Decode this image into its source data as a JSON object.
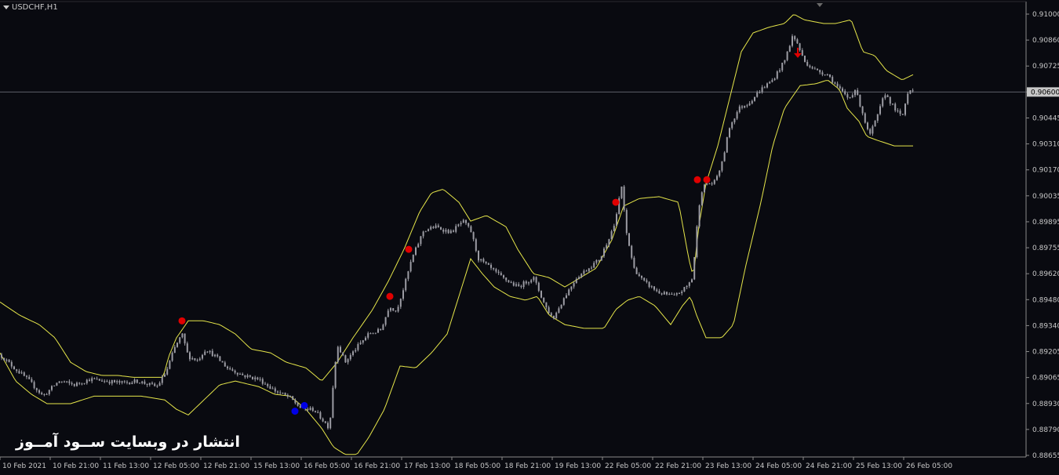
{
  "window": {
    "symbol_label": "USDCHF,H1",
    "watermark": "انتشار در وبسایت ســود آمــوز"
  },
  "colors": {
    "background": "#090a10",
    "grid_axis": "#8a8a8a",
    "candle": "#9c9ca4",
    "band": "#e6e64a",
    "signal_sell": "#e00000",
    "signal_buy": "#0000e6",
    "price_line": "#5c6068",
    "price_label_bg": "#c8c8c8"
  },
  "chart_data": {
    "type": "candlestick",
    "instrument": "USDCHF",
    "timeframe": "H1",
    "price_axis_ticks": [
      "0.91000",
      "0.90860",
      "0.90725",
      "0.90600",
      "0.90445",
      "0.90310",
      "0.90170",
      "0.90035",
      "0.89895",
      "0.89755",
      "0.89620",
      "0.89480",
      "0.89340",
      "0.89205",
      "0.89065",
      "0.88930",
      "0.88790",
      "0.88655"
    ],
    "current_price": "0.90600",
    "time_axis_labels": [
      "10 Feb 2021",
      "10 Feb 21:00",
      "11 Feb 13:00",
      "12 Feb 05:00",
      "12 Feb 21:00",
      "15 Feb 13:00",
      "16 Feb 05:00",
      "16 Feb 21:00",
      "17 Feb 13:00",
      "18 Feb 05:00",
      "18 Feb 21:00",
      "19 Feb 13:00",
      "22 Feb 05:00",
      "22 Feb 21:00",
      "23 Feb 13:00",
      "24 Feb 05:00",
      "24 Feb 21:00",
      "25 Feb 13:00",
      "26 Feb 05:00"
    ],
    "price_path": [
      [
        0,
        0.8919
      ],
      [
        18,
        0.8912
      ],
      [
        35,
        0.8906
      ],
      [
        55,
        0.8897
      ],
      [
        75,
        0.8905
      ],
      [
        95,
        0.8903
      ],
      [
        115,
        0.8906
      ],
      [
        135,
        0.8905
      ],
      [
        155,
        0.8904
      ],
      [
        175,
        0.8905
      ],
      [
        200,
        0.8902
      ],
      [
        212,
        0.891
      ],
      [
        222,
        0.8922
      ],
      [
        232,
        0.893
      ],
      [
        240,
        0.8918
      ],
      [
        252,
        0.8916
      ],
      [
        262,
        0.8922
      ],
      [
        275,
        0.8918
      ],
      [
        290,
        0.8912
      ],
      [
        310,
        0.8908
      ],
      [
        330,
        0.8906
      ],
      [
        350,
        0.89
      ],
      [
        370,
        0.8896
      ],
      [
        385,
        0.889
      ],
      [
        400,
        0.889
      ],
      [
        410,
        0.8885
      ],
      [
        420,
        0.888
      ],
      [
        425,
        0.8905
      ],
      [
        430,
        0.8925
      ],
      [
        440,
        0.8915
      ],
      [
        455,
        0.8923
      ],
      [
        470,
        0.893
      ],
      [
        485,
        0.8932
      ],
      [
        497,
        0.8945
      ],
      [
        505,
        0.8942
      ],
      [
        515,
        0.8955
      ],
      [
        525,
        0.897
      ],
      [
        540,
        0.8985
      ],
      [
        555,
        0.8987
      ],
      [
        575,
        0.8984
      ],
      [
        590,
        0.899
      ],
      [
        600,
        0.8985
      ],
      [
        610,
        0.897
      ],
      [
        625,
        0.8965
      ],
      [
        640,
        0.896
      ],
      [
        660,
        0.8955
      ],
      [
        680,
        0.896
      ],
      [
        695,
        0.8945
      ],
      [
        705,
        0.8938
      ],
      [
        720,
        0.895
      ],
      [
        735,
        0.896
      ],
      [
        750,
        0.8965
      ],
      [
        765,
        0.897
      ],
      [
        775,
        0.898
      ],
      [
        785,
        0.899
      ],
      [
        792,
        0.901
      ],
      [
        798,
        0.8985
      ],
      [
        808,
        0.8965
      ],
      [
        820,
        0.8958
      ],
      [
        840,
        0.8952
      ],
      [
        860,
        0.895
      ],
      [
        875,
        0.8955
      ],
      [
        883,
        0.896
      ],
      [
        888,
        0.8985
      ],
      [
        893,
        0.9005
      ],
      [
        900,
        0.901
      ],
      [
        910,
        0.901
      ],
      [
        920,
        0.902
      ],
      [
        930,
        0.904
      ],
      [
        942,
        0.905
      ],
      [
        955,
        0.9053
      ],
      [
        970,
        0.906
      ],
      [
        985,
        0.9065
      ],
      [
        1000,
        0.9075
      ],
      [
        1010,
        0.9088
      ],
      [
        1016,
        0.9085
      ],
      [
        1025,
        0.9075
      ],
      [
        1040,
        0.907
      ],
      [
        1055,
        0.9068
      ],
      [
        1070,
        0.906
      ],
      [
        1082,
        0.9055
      ],
      [
        1090,
        0.906
      ],
      [
        1098,
        0.905
      ],
      [
        1108,
        0.9035
      ],
      [
        1118,
        0.9045
      ],
      [
        1128,
        0.9058
      ],
      [
        1140,
        0.905
      ],
      [
        1150,
        0.9045
      ],
      [
        1158,
        0.906
      ],
      [
        1165,
        0.906
      ]
    ],
    "upper_band": [
      [
        0,
        0.8947
      ],
      [
        25,
        0.894
      ],
      [
        50,
        0.8935
      ],
      [
        70,
        0.8928
      ],
      [
        90,
        0.8915
      ],
      [
        110,
        0.891
      ],
      [
        130,
        0.8908
      ],
      [
        150,
        0.8908
      ],
      [
        170,
        0.8907
      ],
      [
        190,
        0.8907
      ],
      [
        208,
        0.8907
      ],
      [
        215,
        0.8918
      ],
      [
        225,
        0.8928
      ],
      [
        240,
        0.8937
      ],
      [
        260,
        0.8937
      ],
      [
        280,
        0.8935
      ],
      [
        300,
        0.893
      ],
      [
        320,
        0.8922
      ],
      [
        345,
        0.892
      ],
      [
        365,
        0.8915
      ],
      [
        390,
        0.8912
      ],
      [
        410,
        0.8905
      ],
      [
        430,
        0.8915
      ],
      [
        450,
        0.8928
      ],
      [
        475,
        0.8943
      ],
      [
        495,
        0.8958
      ],
      [
        515,
        0.8975
      ],
      [
        535,
        0.8995
      ],
      [
        550,
        0.9005
      ],
      [
        565,
        0.9007
      ],
      [
        585,
        0.9
      ],
      [
        600,
        0.899
      ],
      [
        620,
        0.8993
      ],
      [
        645,
        0.8987
      ],
      [
        660,
        0.8975
      ],
      [
        680,
        0.8962
      ],
      [
        700,
        0.896
      ],
      [
        720,
        0.8955
      ],
      [
        740,
        0.896
      ],
      [
        760,
        0.8965
      ],
      [
        780,
        0.898
      ],
      [
        795,
        0.8998
      ],
      [
        815,
        0.9002
      ],
      [
        840,
        0.9003
      ],
      [
        865,
        0.9
      ],
      [
        878,
        0.897
      ],
      [
        884,
        0.896
      ],
      [
        890,
        0.8985
      ],
      [
        900,
        0.901
      ],
      [
        915,
        0.903
      ],
      [
        930,
        0.9055
      ],
      [
        945,
        0.908
      ],
      [
        960,
        0.909
      ],
      [
        980,
        0.9093
      ],
      [
        1000,
        0.9095
      ],
      [
        1012,
        0.91
      ],
      [
        1025,
        0.9097
      ],
      [
        1050,
        0.9095
      ],
      [
        1065,
        0.9095
      ],
      [
        1085,
        0.9097
      ],
      [
        1100,
        0.908
      ],
      [
        1115,
        0.9078
      ],
      [
        1130,
        0.907
      ],
      [
        1150,
        0.9065
      ],
      [
        1165,
        0.9068
      ]
    ],
    "lower_band": [
      [
        0,
        0.892
      ],
      [
        20,
        0.8905
      ],
      [
        40,
        0.8898
      ],
      [
        60,
        0.8893
      ],
      [
        90,
        0.8893
      ],
      [
        120,
        0.8897
      ],
      [
        150,
        0.8897
      ],
      [
        180,
        0.8897
      ],
      [
        210,
        0.8895
      ],
      [
        225,
        0.889
      ],
      [
        240,
        0.8887
      ],
      [
        260,
        0.8895
      ],
      [
        280,
        0.8903
      ],
      [
        300,
        0.8905
      ],
      [
        330,
        0.8902
      ],
      [
        350,
        0.8898
      ],
      [
        370,
        0.8897
      ],
      [
        390,
        0.889
      ],
      [
        410,
        0.888
      ],
      [
        425,
        0.887
      ],
      [
        440,
        0.8866
      ],
      [
        455,
        0.8866
      ],
      [
        470,
        0.8875
      ],
      [
        490,
        0.889
      ],
      [
        510,
        0.8913
      ],
      [
        530,
        0.8912
      ],
      [
        550,
        0.892
      ],
      [
        570,
        0.893
      ],
      [
        585,
        0.895
      ],
      [
        600,
        0.897
      ],
      [
        615,
        0.8962
      ],
      [
        630,
        0.8955
      ],
      [
        650,
        0.895
      ],
      [
        670,
        0.8948
      ],
      [
        685,
        0.895
      ],
      [
        700,
        0.894
      ],
      [
        720,
        0.8935
      ],
      [
        745,
        0.8933
      ],
      [
        770,
        0.8933
      ],
      [
        785,
        0.8943
      ],
      [
        800,
        0.8948
      ],
      [
        815,
        0.895
      ],
      [
        835,
        0.8945
      ],
      [
        855,
        0.8935
      ],
      [
        870,
        0.8945
      ],
      [
        880,
        0.895
      ],
      [
        888,
        0.894
      ],
      [
        900,
        0.8928
      ],
      [
        920,
        0.8928
      ],
      [
        935,
        0.8935
      ],
      [
        950,
        0.8965
      ],
      [
        970,
        0.9
      ],
      [
        985,
        0.903
      ],
      [
        1000,
        0.905
      ],
      [
        1020,
        0.9062
      ],
      [
        1040,
        0.9063
      ],
      [
        1055,
        0.9065
      ],
      [
        1070,
        0.906
      ],
      [
        1080,
        0.905
      ],
      [
        1095,
        0.9043
      ],
      [
        1105,
        0.9035
      ],
      [
        1118,
        0.9033
      ],
      [
        1140,
        0.903
      ],
      [
        1165,
        0.903
      ]
    ],
    "signals": [
      {
        "type": "sell",
        "x": 232,
        "price": 0.8937
      },
      {
        "type": "buy",
        "x": 376,
        "price": 0.8889
      },
      {
        "type": "buy",
        "x": 388,
        "price": 0.8892
      },
      {
        "type": "sell",
        "x": 497,
        "price": 0.895
      },
      {
        "type": "sell",
        "x": 521,
        "price": 0.8975
      },
      {
        "type": "sell",
        "x": 785,
        "price": 0.9
      },
      {
        "type": "sell",
        "x": 889,
        "price": 0.9012
      },
      {
        "type": "sell",
        "x": 901,
        "price": 0.9012
      },
      {
        "type": "arrow-down",
        "x": 1017,
        "price": 0.9078
      }
    ]
  }
}
